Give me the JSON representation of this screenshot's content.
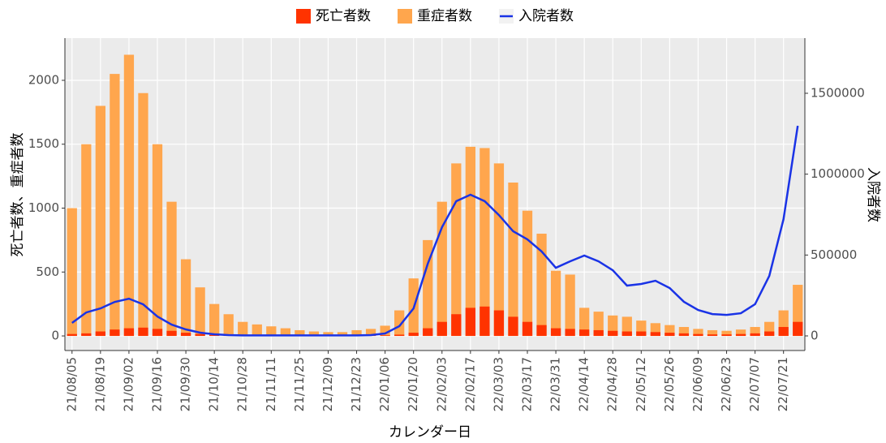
{
  "chart_data": {
    "type": "bar",
    "categories": [
      "21/08/05",
      null,
      "21/08/19",
      null,
      "21/09/02",
      null,
      "21/09/16",
      null,
      "21/09/30",
      null,
      "21/10/14",
      null,
      "21/10/28",
      null,
      "21/11/11",
      null,
      "21/11/25",
      null,
      "21/12/09",
      null,
      "21/12/23",
      null,
      "22/01/06",
      null,
      "22/01/20",
      null,
      "22/02/03",
      null,
      "22/02/17",
      null,
      "22/03/03",
      null,
      "22/03/17",
      null,
      "22/03/31",
      null,
      "22/04/14",
      null,
      "22/04/28",
      null,
      "22/05/12",
      null,
      "22/05/26",
      null,
      "22/06/09",
      null,
      "22/06/23",
      null,
      "22/07/07",
      null,
      "22/07/21",
      null
    ],
    "series": [
      {
        "name": "死亡者数",
        "color": "#ff3300",
        "values": [
          15,
          20,
          35,
          50,
          60,
          65,
          55,
          40,
          25,
          15,
          8,
          4,
          3,
          3,
          3,
          3,
          3,
          3,
          3,
          3,
          3,
          3,
          5,
          10,
          25,
          60,
          110,
          170,
          220,
          230,
          200,
          150,
          110,
          85,
          60,
          55,
          50,
          45,
          40,
          35,
          35,
          30,
          25,
          20,
          15,
          12,
          12,
          15,
          20,
          35,
          70,
          110
        ]
      },
      {
        "name": "重症者数",
        "color": "#ffa64d",
        "values": [
          1000,
          1500,
          1800,
          2050,
          2200,
          1900,
          1500,
          1050,
          600,
          380,
          250,
          170,
          110,
          90,
          75,
          60,
          45,
          35,
          30,
          30,
          45,
          55,
          80,
          200,
          450,
          750,
          1050,
          1350,
          1480,
          1470,
          1350,
          1200,
          980,
          800,
          510,
          480,
          220,
          190,
          160,
          150,
          120,
          100,
          85,
          70,
          55,
          45,
          40,
          50,
          70,
          110,
          200,
          400
        ]
      },
      {
        "name": "入院者数",
        "color": "#1a33e6",
        "axis": "y2",
        "values": [
          80000,
          145000,
          170000,
          210000,
          230000,
          195000,
          120000,
          70000,
          40000,
          20000,
          10000,
          5000,
          3000,
          3000,
          3000,
          3000,
          3000,
          3000,
          3000,
          3000,
          3000,
          5000,
          15000,
          60000,
          170000,
          446000,
          672000,
          833000,
          873000,
          833000,
          747000,
          647000,
          597000,
          522000,
          421000,
          461000,
          497000,
          461000,
          406000,
          311000,
          321000,
          341000,
          296000,
          211000,
          160000,
          135000,
          130000,
          140000,
          196000,
          371000,
          722000,
          1299000
        ]
      }
    ],
    "ylim": [
      -114,
      2330
    ],
    "yticks": [
      0,
      500,
      1000,
      1500,
      2000
    ],
    "y2lim": [
      -90300,
      1841000
    ],
    "y2ticks": [
      0,
      500000,
      1000000,
      1500000
    ],
    "y_label": "死亡者数、重症者数",
    "y2_label": "入院者数",
    "x_label": "カレンダー日",
    "grid": true,
    "legend": "top"
  }
}
